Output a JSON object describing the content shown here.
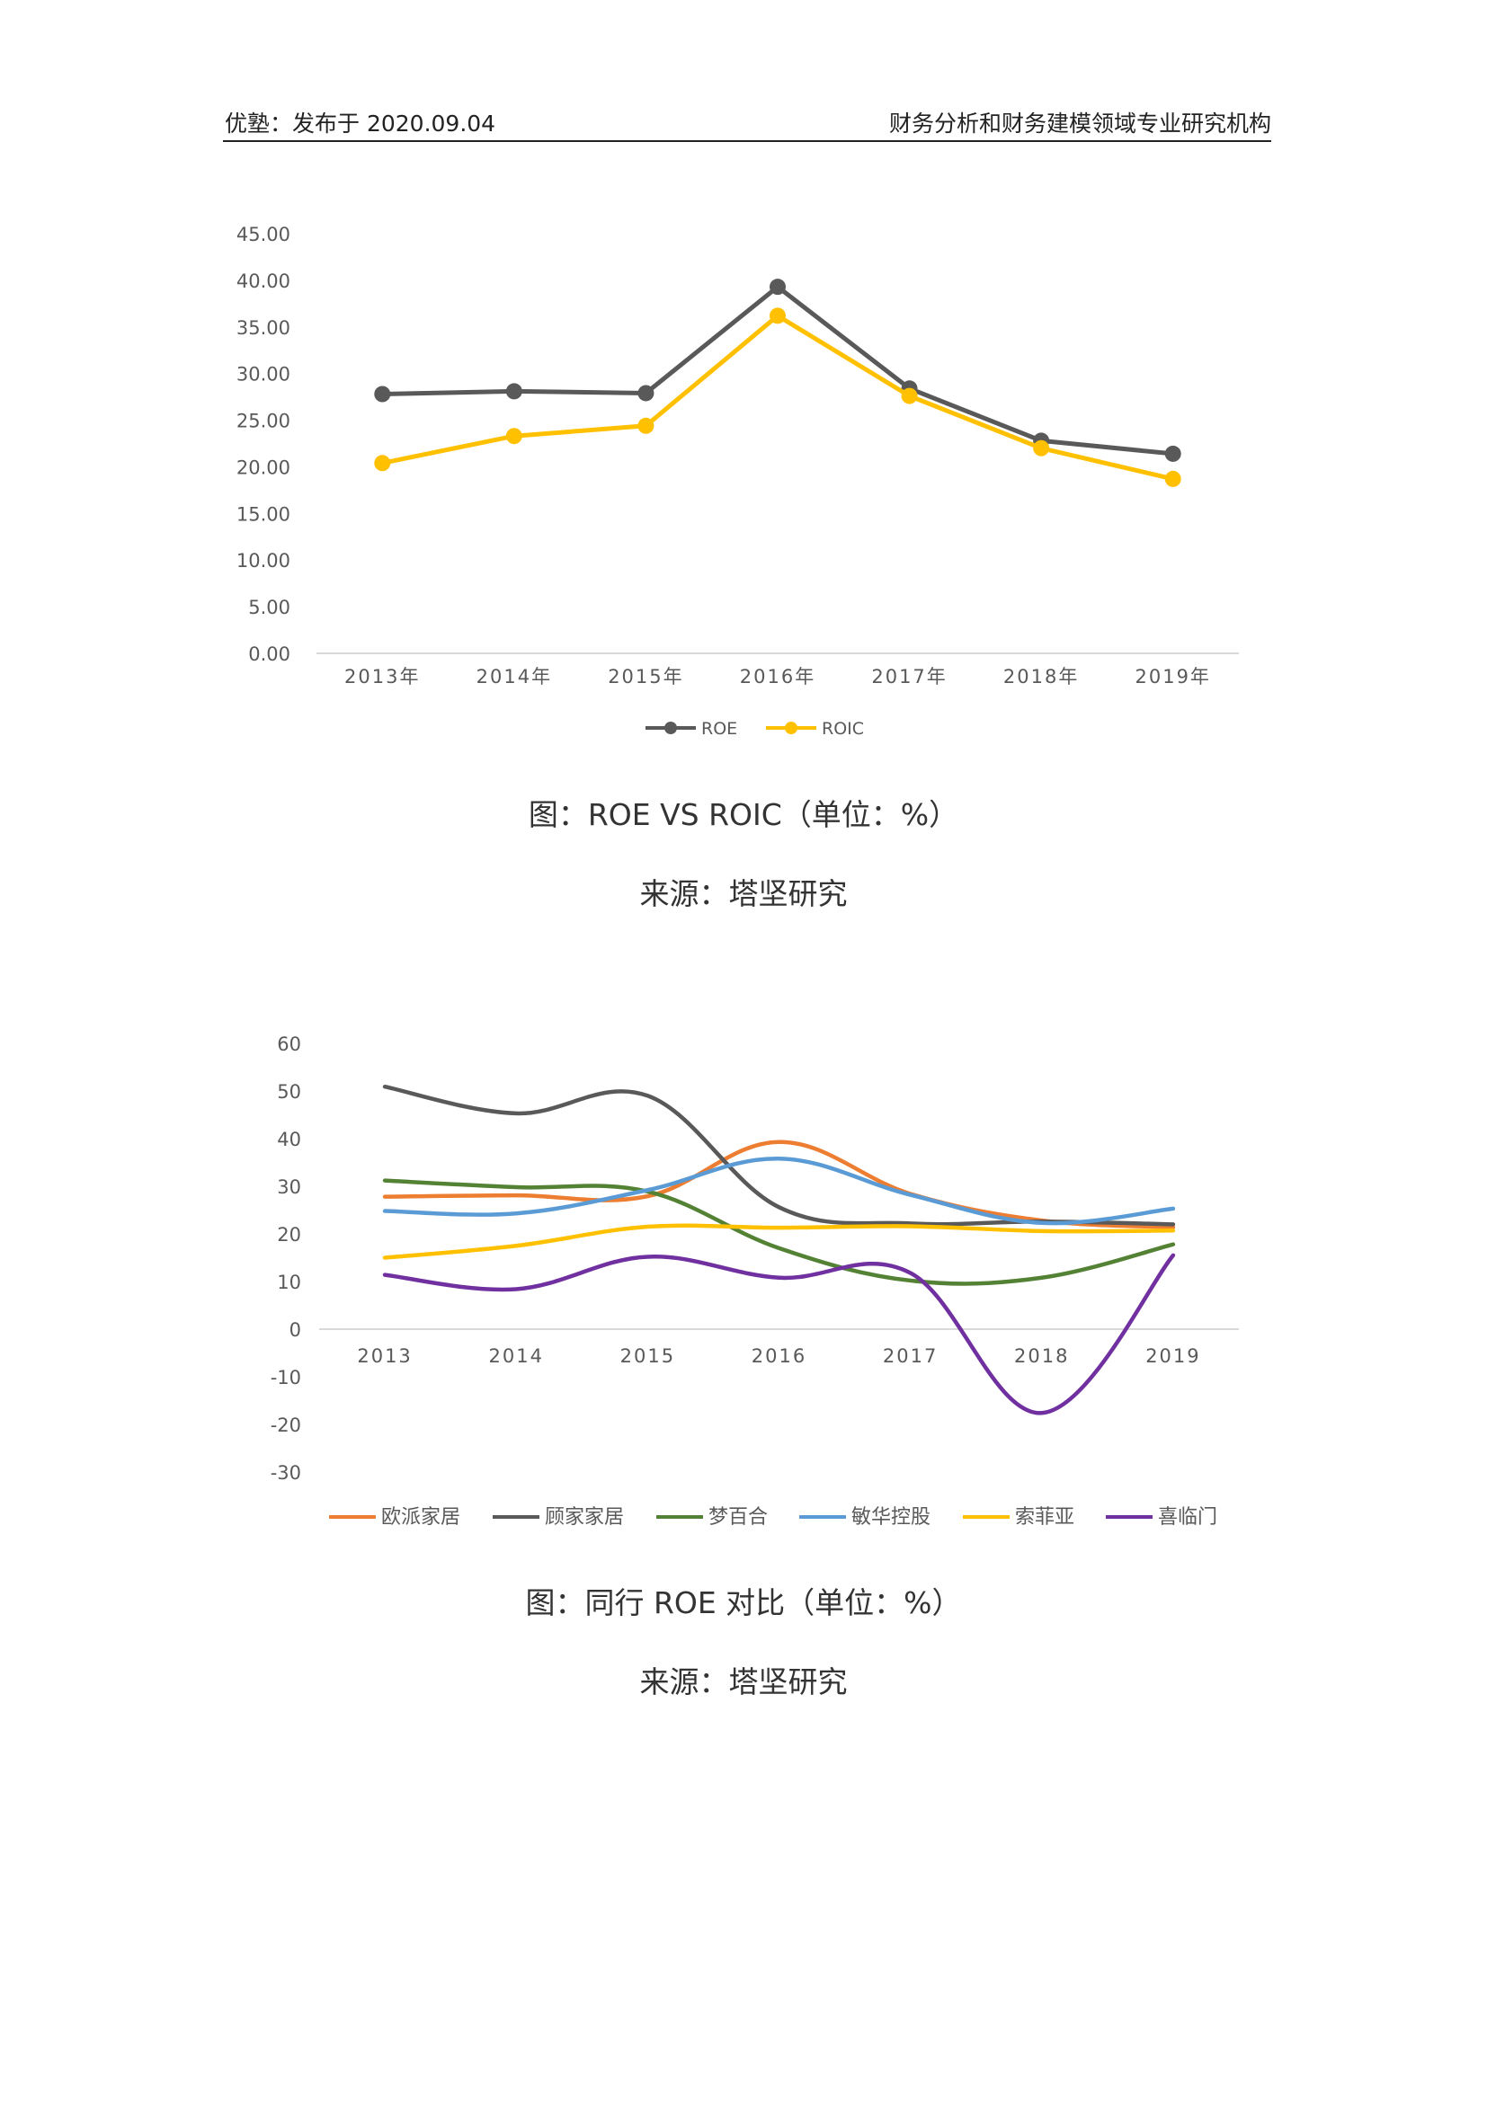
{
  "header": {
    "left": "优塾：发布于 2020.09.04",
    "right": "财务分析和财务建模领域专业研究机构"
  },
  "figure1": {
    "caption": "图：ROE VS ROIC（单位：%）",
    "source": "来源：塔坚研究"
  },
  "figure2": {
    "caption": "图：同行 ROE 对比（单位：%）",
    "source": "来源：塔坚研究"
  },
  "chart_data": [
    {
      "type": "line",
      "categories": [
        "2013年",
        "2014年",
        "2015年",
        "2016年",
        "2017年",
        "2018年",
        "2019年"
      ],
      "series": [
        {
          "name": "ROE",
          "color": "#595959",
          "values": [
            27.8,
            28.1,
            27.9,
            39.3,
            28.4,
            22.8,
            21.4
          ]
        },
        {
          "name": "ROIC",
          "color": "#FFC000",
          "values": [
            20.4,
            23.3,
            24.4,
            36.2,
            27.6,
            22.0,
            18.7
          ]
        }
      ],
      "yticks": [
        "0.00",
        "5.00",
        "10.00",
        "15.00",
        "20.00",
        "25.00",
        "30.00",
        "35.00",
        "40.00",
        "45.00"
      ],
      "ylim": [
        0,
        45
      ],
      "markers": true,
      "smooth": false,
      "legend": "bottom"
    },
    {
      "type": "line",
      "categories": [
        "2013",
        "2014",
        "2015",
        "2016",
        "2017",
        "2018",
        "2019"
      ],
      "series": [
        {
          "name": "欧派家居",
          "color": "#ED7D31",
          "values": [
            27.8,
            28.1,
            27.9,
            39.3,
            28.4,
            22.8,
            21.4
          ]
        },
        {
          "name": "顾家家居",
          "color": "#595959",
          "values": [
            50.9,
            45.3,
            49.0,
            25.6,
            22.2,
            22.6,
            22.0
          ]
        },
        {
          "name": "梦百合",
          "color": "#548235",
          "values": [
            31.2,
            29.8,
            28.9,
            17.0,
            10.2,
            10.8,
            17.8
          ]
        },
        {
          "name": "敏华控股",
          "color": "#5B9BD5",
          "values": [
            24.8,
            24.3,
            29.2,
            35.8,
            28.2,
            22.3,
            25.3
          ]
        },
        {
          "name": "索菲亚",
          "color": "#FFC000",
          "values": [
            15.0,
            17.5,
            21.5,
            21.3,
            21.6,
            20.6,
            20.7
          ]
        },
        {
          "name": "喜临门",
          "color": "#7030A0",
          "values": [
            11.4,
            8.4,
            15.2,
            10.8,
            11.8,
            -17.6,
            15.5
          ]
        }
      ],
      "yticks": [
        "-30",
        "-20",
        "-10",
        "0",
        "10",
        "20",
        "30",
        "40",
        "50",
        "60"
      ],
      "ylim": [
        -30,
        60
      ],
      "markers": false,
      "smooth": true,
      "legend": "bottom"
    }
  ]
}
